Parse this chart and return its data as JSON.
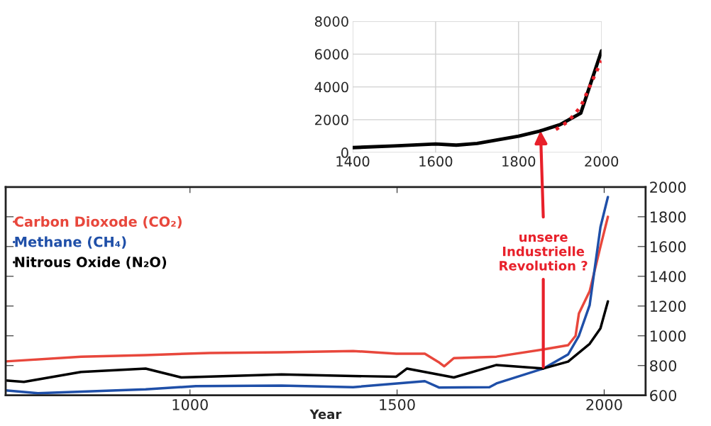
{
  "chart_data": [
    {
      "type": "line",
      "xlim": [
        1400,
        2000
      ],
      "ylim": [
        0,
        8000
      ],
      "xticks": [
        1400,
        1600,
        1800,
        2000
      ],
      "yticks": [
        0,
        2000,
        4000,
        6000,
        8000
      ],
      "grid": true,
      "legend": false,
      "series": [
        {
          "color": "#000000",
          "line_style": "solid",
          "x": [
            1400,
            1500,
            1600,
            1650,
            1700,
            1800,
            1850,
            1900,
            1950,
            2000
          ],
          "values": [
            300,
            400,
            520,
            450,
            550,
            1000,
            1300,
            1700,
            2400,
            6200
          ]
        },
        {
          "color": "#e8202a",
          "line_style": "dotted",
          "x": [
            1890,
            1920,
            1950,
            1980,
            2000
          ],
          "values": [
            1400,
            1900,
            2800,
            4500,
            5600
          ]
        }
      ]
    },
    {
      "type": "line",
      "xlabel": "Year",
      "xlim": [
        555,
        2100
      ],
      "ylim": [
        600,
        2000
      ],
      "xticks": [
        1000,
        1500,
        2000
      ],
      "yticks": [
        600,
        800,
        1000,
        1200,
        1400,
        1600,
        1800,
        2000
      ],
      "grid": false,
      "legend": "top left",
      "annotations": [
        {
          "text": "unsere\nIndustrielle\nRevolution ?",
          "x": 1853,
          "y": 790
        }
      ],
      "series": [
        {
          "name": "Carbon Dioxode (CO₂)",
          "color": "#e8473c",
          "x": [
            555,
            737,
            893,
            1048,
            1221,
            1394,
            1498,
            1567,
            1602,
            1614,
            1637,
            1740,
            1853,
            1913,
            1931,
            1939,
            1965,
            1991,
            2009
          ],
          "values": [
            828,
            860,
            870,
            885,
            889,
            898,
            880,
            880,
            820,
            795,
            850,
            860,
            908,
            937,
            1000,
            1150,
            1300,
            1600,
            1800
          ]
        },
        {
          "name": "Methane (CH₄)",
          "color": "#1f4fa8",
          "x": [
            555,
            633,
            893,
            1014,
            1221,
            1394,
            1567,
            1602,
            1723,
            1740,
            1853,
            1913,
            1939,
            1965,
            1991,
            2009
          ],
          "values": [
            633,
            614,
            640,
            662,
            665,
            655,
            695,
            652,
            655,
            680,
            780,
            875,
            1000,
            1207,
            1730,
            1933
          ]
        },
        {
          "name": "Nitrous Oxide (N₂O)",
          "color": "#000000",
          "x": [
            555,
            599,
            737,
            893,
            979,
            1221,
            1394,
            1498,
            1524,
            1637,
            1740,
            1853,
            1913,
            1965,
            1991,
            2009
          ],
          "values": [
            700,
            690,
            757,
            780,
            720,
            740,
            730,
            725,
            780,
            720,
            804,
            780,
            827,
            946,
            1050,
            1231
          ]
        }
      ]
    }
  ]
}
